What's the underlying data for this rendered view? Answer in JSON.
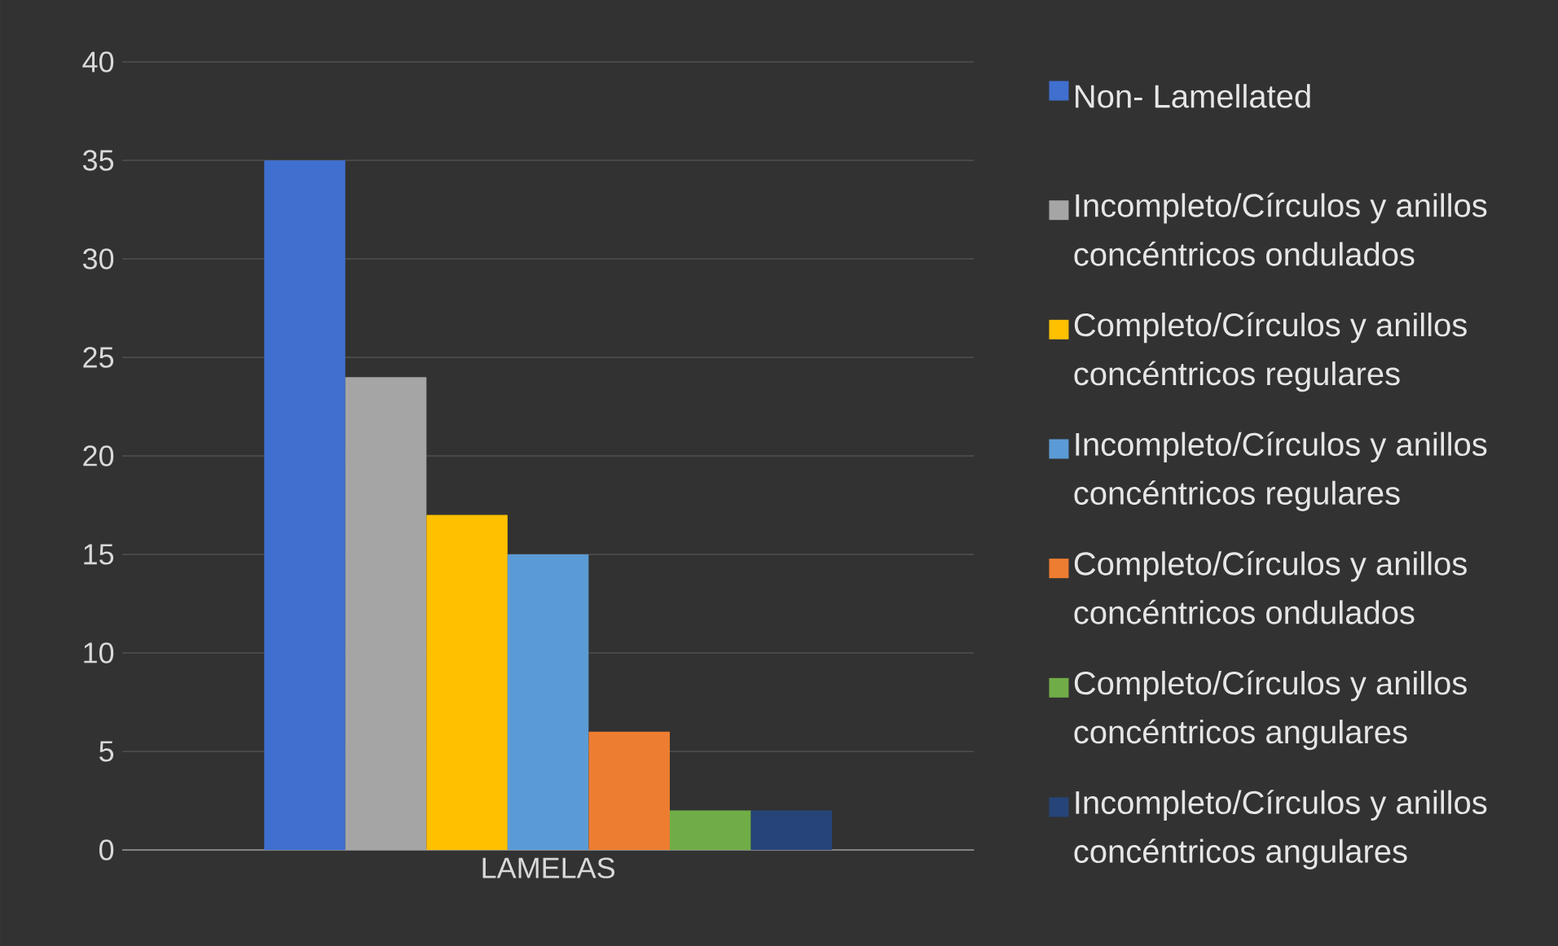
{
  "chart_data": {
    "type": "bar",
    "categories": [
      "LAMELAS"
    ],
    "series": [
      {
        "name": "Non- Lamellated",
        "color": "#3f6fcf",
        "values": [
          35
        ]
      },
      {
        "name": "Incompleto/Círculos y anillos concéntricos ondulados",
        "color": "#a5a5a5",
        "values": [
          24
        ]
      },
      {
        "name": "Completo/Círculos y anillos concéntricos regulares",
        "color": "#ffc000",
        "values": [
          17
        ]
      },
      {
        "name": "Incompleto/Círculos y anillos concéntricos regulares",
        "color": "#5b9bd5",
        "values": [
          15
        ]
      },
      {
        "name": "Completo/Círculos y anillos concéntricos ondulados",
        "color": "#ed7d31",
        "values": [
          6
        ]
      },
      {
        "name": "Completo/Círculos y anillos concéntricos angulares",
        "color": "#70ad47",
        "values": [
          2
        ]
      },
      {
        "name": "Incompleto/Círculos y anillos concéntricos angulares",
        "color": "#264478",
        "values": [
          2
        ]
      }
    ],
    "ylim": [
      0,
      40
    ],
    "yticks": [
      0,
      5,
      10,
      15,
      20,
      25,
      30,
      35,
      40
    ],
    "grid": "y",
    "legend": "right"
  }
}
